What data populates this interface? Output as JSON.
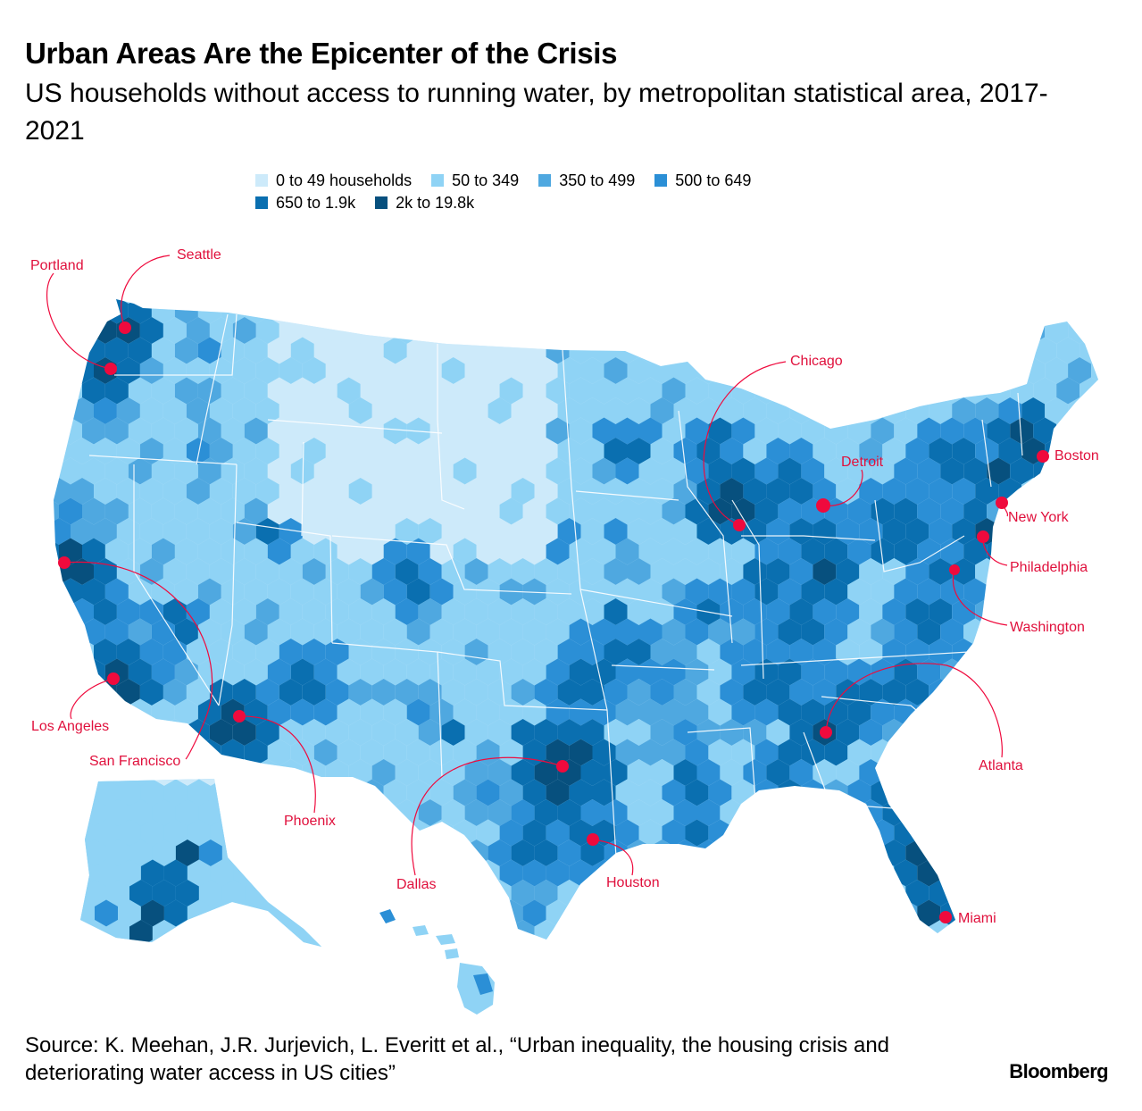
{
  "header": {
    "title": "Urban Areas Are the Epicenter of the Crisis",
    "subtitle": "US households without access to running water, by metropolitan statistical area, 2017-2021"
  },
  "legend": {
    "items": [
      {
        "label": "0 to 49 households",
        "color": "#cdeafa"
      },
      {
        "label": "50 to 349",
        "color": "#8fd3f5"
      },
      {
        "label": "350 to 499",
        "color": "#4fa8e0"
      },
      {
        "label": "500 to 649",
        "color": "#2b8fd6"
      },
      {
        "label": "650 to 1.9k",
        "color": "#0a6fb0"
      },
      {
        "label": "2k to 19.8k",
        "color": "#07507e"
      }
    ]
  },
  "map": {
    "marker_color": "#ef0a3d",
    "cities": [
      {
        "name": "Seattle"
      },
      {
        "name": "Portland"
      },
      {
        "name": "San Francisco"
      },
      {
        "name": "Los Angeles"
      },
      {
        "name": "Phoenix"
      },
      {
        "name": "Dallas"
      },
      {
        "name": "Houston"
      },
      {
        "name": "Chicago"
      },
      {
        "name": "Detroit"
      },
      {
        "name": "Atlanta"
      },
      {
        "name": "Miami"
      },
      {
        "name": "Washington"
      },
      {
        "name": "Philadelphia"
      },
      {
        "name": "New York"
      },
      {
        "name": "Boston"
      }
    ]
  },
  "footer": {
    "source": "Source: K. Meehan, J.R. Jurjevich, L. Everitt et al., “Urban inequality, the housing crisis and deteriorating water access in US cities”",
    "brand": "Bloomberg"
  }
}
